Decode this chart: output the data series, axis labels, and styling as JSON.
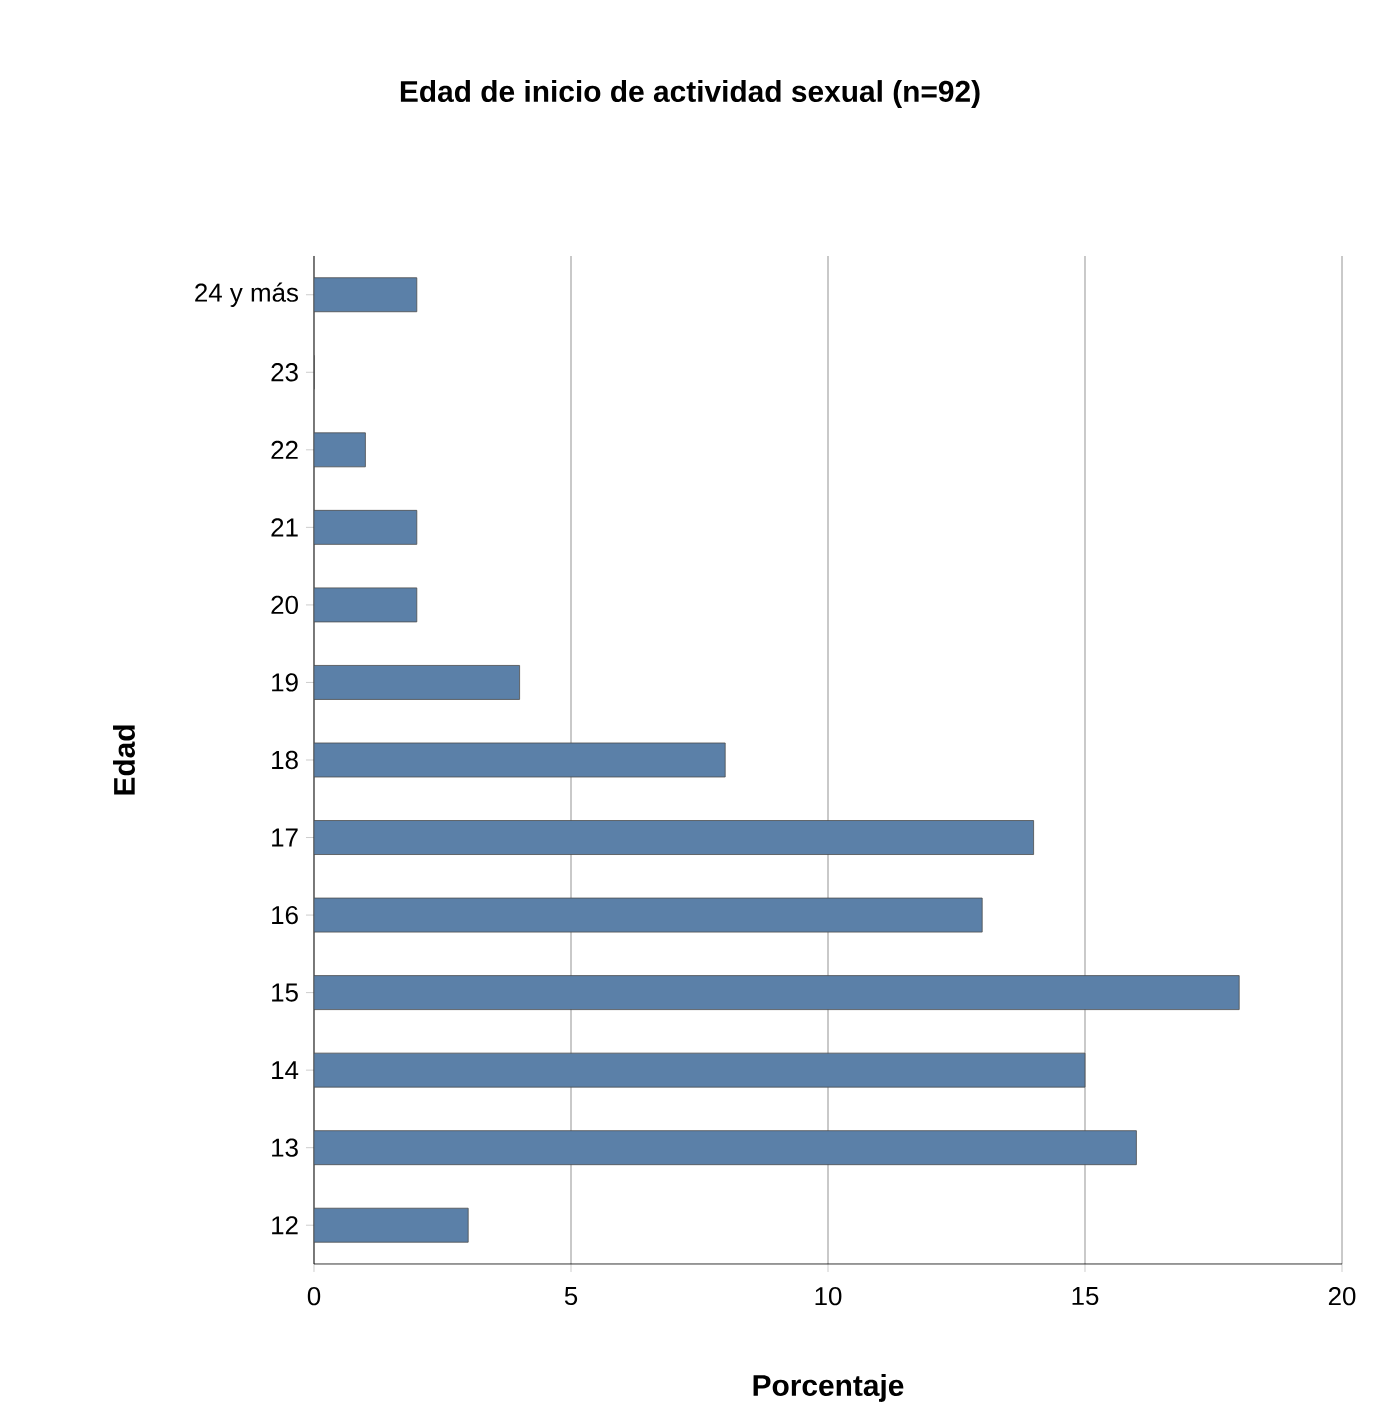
{
  "chart_data": {
    "type": "bar",
    "orientation": "horizontal",
    "title": "Edad de inicio de actividad sexual (n=92)",
    "xlabel": "Porcentaje",
    "ylabel": "Edad",
    "categories": [
      "24 y más",
      "23",
      "22",
      "21",
      "20",
      "19",
      "18",
      "17",
      "16",
      "15",
      "14",
      "13",
      "12"
    ],
    "values": [
      2,
      0,
      1,
      2,
      2,
      4,
      8,
      14,
      13,
      18,
      15,
      16,
      3
    ],
    "color": "#5b80a8",
    "xlim": [
      0,
      20
    ],
    "xticks": [
      0,
      5,
      10,
      15,
      20
    ],
    "grid": "x"
  }
}
